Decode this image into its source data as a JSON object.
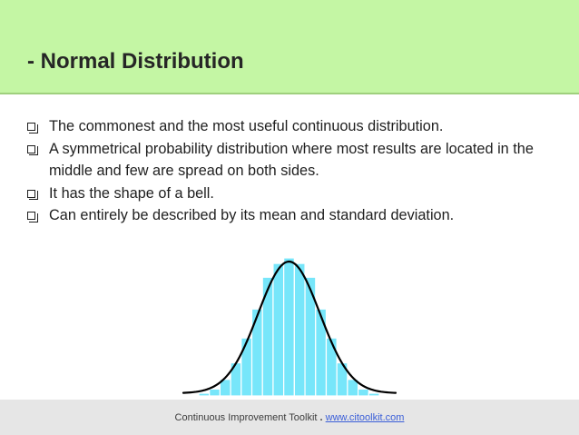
{
  "slide": {
    "title": "- Normal Distribution",
    "bullets": [
      "The commonest and the most useful continuous distribution.",
      "A symmetrical probability distribution where most results are located in the middle and few are spread on both sides.",
      "It has the shape of a bell.",
      "Can entirely be described by its mean and standard deviation."
    ],
    "footer": {
      "text": "Continuous Improvement Toolkit",
      "separator": ".",
      "link": "www.citoolkit.com"
    }
  },
  "colors": {
    "header_bg": "#c4f6a4",
    "bar_fill": "#77e6fa",
    "bar_stroke": "#ffffff",
    "curve": "#000000"
  },
  "chart_data": {
    "type": "bar",
    "title": "",
    "xlabel": "",
    "ylabel": "",
    "ylim": [
      0,
      1
    ],
    "values": [
      0.02,
      0.05,
      0.12,
      0.24,
      0.42,
      0.63,
      0.86,
      0.96,
      1.0,
      0.96,
      0.86,
      0.63,
      0.42,
      0.24,
      0.12,
      0.05,
      0.02
    ],
    "overlay": "normal-curve",
    "grid": false
  }
}
